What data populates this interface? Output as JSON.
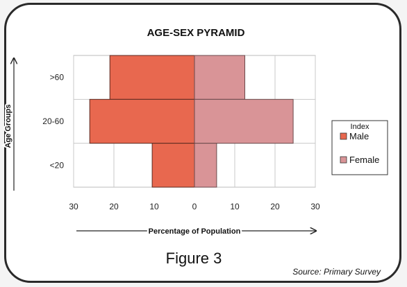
{
  "chart_data": {
    "type": "bar",
    "orientation": "horizontal-diverging",
    "title": "AGE-SEX PYRAMID",
    "categories": [
      ">60",
      "20-60",
      "<20"
    ],
    "series": [
      {
        "name": "Male",
        "values": [
          21,
          26,
          10.5
        ],
        "color": "#e8684f"
      },
      {
        "name": "Female",
        "values": [
          12.5,
          24.5,
          5.5
        ],
        "color": "#d99497"
      }
    ],
    "xlabel": "Percentage of Population",
    "ylabel": "Age Groups",
    "xlim": [
      -30,
      30
    ],
    "x_ticks": [
      -30,
      -20,
      -10,
      0,
      10,
      20,
      30
    ],
    "x_tick_labels": [
      "30",
      "20",
      "10",
      "0",
      "10",
      "20",
      "30"
    ],
    "grid": true,
    "legend": {
      "title": "Index",
      "placement": "right"
    }
  },
  "figure_caption": "Figure 3",
  "source": "Source: Primary Survey"
}
